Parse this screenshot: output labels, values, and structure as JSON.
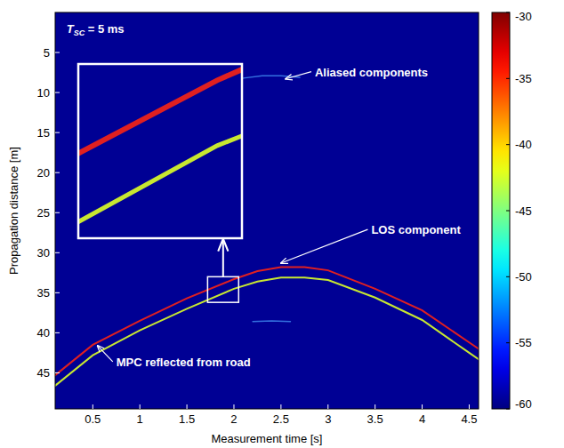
{
  "chart_data": {
    "type": "line",
    "x_label": "Measurement time [s]",
    "y_label": "Propagation distance [m]",
    "xlim": [
      0.1,
      4.6
    ],
    "ylim": [
      0,
      49.5
    ],
    "xticks": [
      0.5,
      1,
      1.5,
      2,
      2.5,
      3,
      3.5,
      4,
      4.5
    ],
    "yticks": [
      5,
      10,
      15,
      20,
      25,
      30,
      35,
      40,
      45
    ],
    "grid": false,
    "colorbar": {
      "range": [
        -60,
        -30
      ],
      "ticks": [
        -60,
        -55,
        -50,
        -45,
        -40,
        -35,
        -30
      ]
    },
    "series": [
      {
        "color": "#e02020",
        "x": [
          0.1,
          0.5,
          1,
          1.5,
          2,
          2.25,
          2.5,
          2.75,
          3,
          3.5,
          4,
          4.5,
          4.6
        ],
        "values": [
          45.3,
          41.5,
          38.5,
          35.7,
          33.3,
          32.3,
          31.8,
          31.8,
          32.2,
          34.5,
          37.2,
          41.2,
          42.0
        ]
      },
      {
        "color": "#c8e830",
        "x": [
          0.1,
          0.5,
          1,
          1.5,
          2,
          2.25,
          2.5,
          2.75,
          3,
          3.5,
          4,
          4.5,
          4.6
        ],
        "values": [
          46.6,
          42.8,
          39.7,
          37.0,
          34.5,
          33.6,
          33.1,
          33.1,
          33.4,
          35.6,
          38.4,
          42.5,
          43.3
        ]
      },
      {
        "color": "#4aa0ff",
        "x": [
          2.1,
          2.3,
          2.5,
          2.7
        ],
        "values": [
          8.2,
          7.9,
          7.9,
          8.1
        ]
      },
      {
        "color": "#4aa0ff",
        "x": [
          2.2,
          2.4,
          2.6
        ],
        "values": [
          38.6,
          38.5,
          38.6
        ]
      }
    ],
    "inset": {
      "xlim": [
        1.72,
        2.05
      ],
      "ylim": [
        33.0,
        36.2
      ]
    },
    "parameter": {
      "symbol": "T",
      "subscript": "SC",
      "text": " = 5 ms",
      "x": 0.22,
      "y": 2.0
    },
    "annotations": [
      {
        "text": "Aliased components",
        "x": 2.86,
        "y": 7.4,
        "arrow_x": 2.55,
        "arrow_y": 8.3
      },
      {
        "text": "LOS component",
        "x": 3.46,
        "y": 27.1,
        "arrow_x": 2.5,
        "arrow_y": 31.3
      },
      {
        "text": "MPC reflected from road",
        "x": 0.75,
        "y": 43.6,
        "arrow_x": 0.55,
        "arrow_y": 41.6
      }
    ]
  }
}
